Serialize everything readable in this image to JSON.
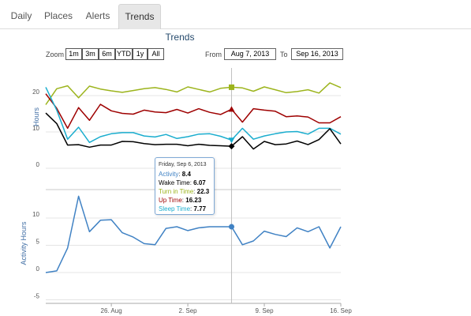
{
  "tabs": [
    {
      "label": "Daily"
    },
    {
      "label": "Places"
    },
    {
      "label": "Alerts"
    },
    {
      "label": "Trends",
      "active": true
    }
  ],
  "header": {
    "title": "Trends"
  },
  "zoom": {
    "label": "Zoom",
    "buttons": [
      "1m",
      "3m",
      "6m",
      "YTD",
      "1y",
      "All"
    ]
  },
  "range": {
    "from_label": "From",
    "from_value": "Aug 7, 2013",
    "to_label": "To",
    "to_value": "Sep 16, 2013"
  },
  "tooltip": {
    "date": "Friday, Sep 6, 2013",
    "rows": [
      {
        "label": "Activity",
        "value": "8.4",
        "color": "#4082c4"
      },
      {
        "label": "Wake Time",
        "value": "6.07",
        "color": "#000000"
      },
      {
        "label": "Turn in Time",
        "value": "22.3",
        "color": "#9cb41c"
      },
      {
        "label": "Up Time",
        "value": "16.23",
        "color": "#9e0000"
      },
      {
        "label": "Sleep Time",
        "value": "7.77",
        "color": "#1aadce"
      }
    ]
  },
  "chart_data": [
    {
      "type": "line",
      "ylabel": "Hours",
      "ylim": [
        0,
        25
      ],
      "yticks": [
        0,
        10,
        20
      ],
      "grid": true,
      "x": [
        "Aug 20",
        "Aug 21",
        "Aug 22",
        "Aug 23",
        "Aug 24",
        "Aug 25",
        "Aug 26",
        "Aug 27",
        "Aug 28",
        "Aug 29",
        "Aug 30",
        "Aug 31",
        "Sep 1",
        "Sep 2",
        "Sep 3",
        "Sep 4",
        "Sep 5",
        "Sep 6",
        "Sep 7",
        "Sep 8",
        "Sep 9",
        "Sep 10",
        "Sep 11",
        "Sep 12",
        "Sep 13",
        "Sep 14",
        "Sep 15",
        "Sep 16"
      ],
      "series": [
        {
          "name": "Turn in Time",
          "color": "#9cb41c",
          "values": [
            17.5,
            21.9,
            22.7,
            19.4,
            22.6,
            21.8,
            21.3,
            20.9,
            21.4,
            21.9,
            22.2,
            21.7,
            21.0,
            22.4,
            21.7,
            21.0,
            22.0,
            22.3,
            22.1,
            21.2,
            22.4,
            21.6,
            20.8,
            21.1,
            21.6,
            20.7,
            23.5,
            22.2
          ]
        },
        {
          "name": "Up Time",
          "color": "#9e0000",
          "values": [
            20.5,
            16.5,
            11.0,
            16.7,
            13.2,
            17.6,
            15.8,
            15.1,
            14.9,
            16.0,
            15.5,
            15.3,
            16.2,
            15.2,
            16.4,
            15.4,
            14.8,
            16.23,
            12.7,
            16.4,
            16.0,
            15.7,
            14.2,
            14.4,
            14.1,
            12.5,
            12.5,
            14.2
          ]
        },
        {
          "name": "Sleep Time",
          "color": "#1aadce",
          "values": [
            22.3,
            16.0,
            8.0,
            11.3,
            7.1,
            8.7,
            9.5,
            9.8,
            9.8,
            8.9,
            8.6,
            9.3,
            8.2,
            8.7,
            9.4,
            9.5,
            8.8,
            7.77,
            11.0,
            8.0,
            8.9,
            9.5,
            10.0,
            10.1,
            9.4,
            11.0,
            11.0,
            9.4
          ]
        },
        {
          "name": "Wake Time",
          "color": "#000000",
          "values": [
            15.2,
            12.3,
            6.4,
            6.5,
            5.8,
            6.4,
            6.4,
            7.4,
            7.3,
            6.8,
            6.5,
            6.6,
            6.6,
            6.2,
            6.6,
            6.3,
            6.2,
            6.07,
            8.7,
            5.3,
            7.4,
            6.5,
            6.7,
            7.5,
            6.5,
            7.9,
            10.9,
            6.7
          ]
        }
      ]
    },
    {
      "type": "line",
      "ylabel": "Activity Hours",
      "ylim": [
        -5,
        12
      ],
      "yticks": [
        -5,
        0,
        5,
        10
      ],
      "xticks": [
        "26. Aug",
        "2. Sep",
        "9. Sep",
        "16. Sep"
      ],
      "grid": true,
      "x": [
        "Aug 20",
        "Aug 21",
        "Aug 22",
        "Aug 23",
        "Aug 24",
        "Aug 25",
        "Aug 26",
        "Aug 27",
        "Aug 28",
        "Aug 29",
        "Aug 30",
        "Aug 31",
        "Sep 1",
        "Sep 2",
        "Sep 3",
        "Sep 4",
        "Sep 5",
        "Sep 6",
        "Sep 7",
        "Sep 8",
        "Sep 9",
        "Sep 10",
        "Sep 11",
        "Sep 12",
        "Sep 13",
        "Sep 14",
        "Sep 15",
        "Sep 16"
      ],
      "series": [
        {
          "name": "Activity",
          "color": "#4082c4",
          "values": [
            0.0,
            0.3,
            4.5,
            14.0,
            7.5,
            9.6,
            9.7,
            7.3,
            6.5,
            5.3,
            5.1,
            8.1,
            8.4,
            7.7,
            8.2,
            8.4,
            8.4,
            8.4,
            5.1,
            5.8,
            7.6,
            7.0,
            6.6,
            8.2,
            7.5,
            8.4,
            4.5,
            8.4
          ]
        }
      ]
    }
  ],
  "crosshair_index": 17
}
